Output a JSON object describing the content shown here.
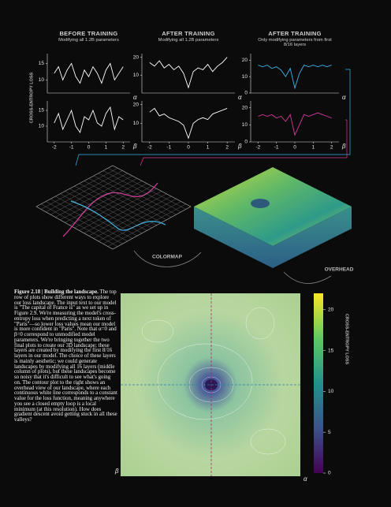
{
  "y_axis_label": "CROSS-ENTROPY LOSS",
  "annotations": [
    "COLORMAP",
    "OVERHEAD"
  ],
  "caption": {
    "label": "Figure 2.18 | Building the landscape.",
    "text": "The top row of plots show different ways to explore our loss landscape. The input text to our model is \"The capital of France is\" as we set up in Figure 2.9. We're measuring the model's cross-entropy loss when predicting a next token of \"Paris\"—so lower loss values mean our model is more confident in \"Paris\". Note that α=0 and β=0 correspond to unmodified model parameters. We're bringing together the two final plots to create our 3D landscape; these layers are created by modifying the first 8/16 layers in our model. The choice of these layers is mainly aesthetic; we could generate landscapes by modifying all 16 layers (middle column of plots), but these landscapes become so noisy that it's difficult to see what's going on. The contour plot to the right shows an overhead view of our landscape, where each continuous white line corresponds to a constant value for the loss function, meaning anywhere you see a closed empty loop is a local minimum (at this resolution). How does gradient descent avoid getting stuck in all these valleys?"
  },
  "chart_data": [
    {
      "type": "line",
      "title": "BEFORE TRAINING",
      "subtitle": "Modifying all 1.2B parameters",
      "xlabel": "α",
      "color": "#ffffff",
      "x": [
        -2,
        -1.75,
        -1.5,
        -1.25,
        -1,
        -0.75,
        -0.5,
        -0.25,
        0,
        0.25,
        0.5,
        0.75,
        1,
        1.25,
        1.5,
        1.75,
        2
      ],
      "values": [
        12,
        14,
        10,
        13,
        15,
        11,
        9,
        13,
        11,
        14,
        12,
        9,
        13,
        15,
        10,
        12,
        14
      ],
      "xlim": [
        -2.4,
        2.4
      ],
      "ylim": [
        6,
        18
      ],
      "yticks": [
        10,
        15
      ]
    },
    {
      "type": "line",
      "title": "AFTER TRAINING",
      "subtitle": "Modifying all 1.2B parameters",
      "xlabel": "α",
      "color": "#ffffff",
      "x": [
        -2,
        -1.75,
        -1.5,
        -1.25,
        -1,
        -0.75,
        -0.5,
        -0.25,
        0,
        0.25,
        0.5,
        0.75,
        1,
        1.25,
        1.5,
        1.75,
        2
      ],
      "values": [
        17,
        15,
        18,
        14,
        16,
        13,
        15,
        11,
        3,
        12,
        14,
        13,
        16,
        12,
        15,
        17,
        20
      ],
      "xlim": [
        -2.4,
        2.4
      ],
      "ylim": [
        0,
        22
      ],
      "yticks": [
        10,
        20
      ]
    },
    {
      "type": "line",
      "title": "AFTER TRAINING",
      "subtitle": "Only modifying parameters from first 8/16 layers",
      "xlabel": "α",
      "color": "#3ab4e6",
      "x": [
        -2,
        -1.75,
        -1.5,
        -1.25,
        -1,
        -0.75,
        -0.5,
        -0.25,
        0,
        0.25,
        0.5,
        0.75,
        1,
        1.25,
        1.5,
        1.75,
        2
      ],
      "values": [
        17,
        16,
        17,
        15,
        16,
        14,
        10,
        15,
        3,
        12,
        17,
        16,
        17,
        16,
        17,
        16,
        17
      ],
      "xlim": [
        -2.4,
        2.4
      ],
      "ylim": [
        0,
        24
      ],
      "yticks": [
        0,
        10,
        20
      ]
    },
    {
      "type": "line",
      "xlabel": "β",
      "color": "#ffffff",
      "x": [
        -2,
        -1.75,
        -1.5,
        -1.25,
        -1,
        -0.75,
        -0.5,
        -0.25,
        0,
        0.25,
        0.5,
        0.75,
        1,
        1.25,
        1.5,
        1.75,
        2
      ],
      "values": [
        11,
        14,
        9,
        12,
        15,
        10,
        8,
        13,
        12,
        15,
        11,
        10,
        14,
        16,
        9,
        13,
        12
      ],
      "xlim": [
        -2.4,
        2.4
      ],
      "xticks": [
        -2,
        -1,
        0,
        1,
        2
      ],
      "ylim": [
        5,
        18
      ],
      "yticks": [
        10,
        15
      ]
    },
    {
      "type": "line",
      "xlabel": "β",
      "color": "#ffffff",
      "x": [
        -2,
        -1.75,
        -1.5,
        -1.25,
        -1,
        -0.75,
        -0.5,
        -0.25,
        0,
        0.25,
        0.5,
        0.75,
        1,
        1.25,
        1.5,
        1.75,
        2
      ],
      "values": [
        16,
        18,
        14,
        15,
        13,
        12,
        11,
        9,
        2,
        10,
        12,
        13,
        12,
        15,
        16,
        17,
        18
      ],
      "xlim": [
        -2.4,
        2.4
      ],
      "xticks": [
        -2,
        -1,
        0,
        1,
        2
      ],
      "ylim": [
        0,
        22
      ],
      "yticks": [
        10,
        20
      ]
    },
    {
      "type": "line",
      "xlabel": "β",
      "color": "#d6399c",
      "x": [
        -2,
        -1.75,
        -1.5,
        -1.25,
        -1,
        -0.75,
        -0.5,
        -0.25,
        0,
        0.25,
        0.5,
        0.75,
        1,
        1.25,
        1.5,
        1.75,
        2
      ],
      "values": [
        15,
        16,
        15,
        16,
        14,
        15,
        12,
        16,
        4,
        10,
        16,
        15,
        16,
        17,
        16,
        15,
        14
      ],
      "xlim": [
        -2.4,
        2.4
      ],
      "xticks": [
        -2,
        -1,
        0,
        1,
        2
      ],
      "ylim": [
        0,
        24
      ],
      "yticks": [
        0,
        10,
        20
      ]
    },
    {
      "type": "contour",
      "xlabel": "α",
      "ylabel": "β",
      "colorbar": {
        "label": "CROSS-ENTROPY LOSS",
        "lim": [
          0,
          22
        ],
        "ticks": [
          0,
          5,
          10,
          15,
          20
        ]
      }
    }
  ]
}
